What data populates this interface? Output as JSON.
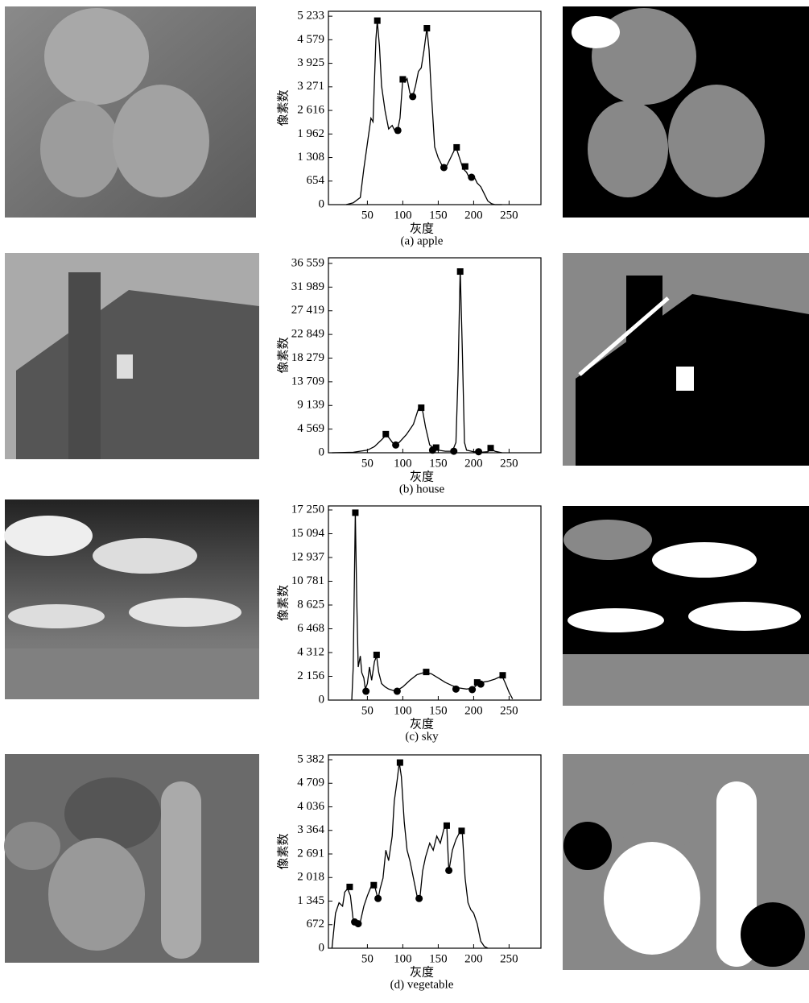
{
  "chart_data": [
    {
      "type": "line",
      "caption": "(a) apple",
      "xlabel": "灰度",
      "ylabel": "像素数",
      "xlim": [
        -5,
        295
      ],
      "xticks": [
        50,
        100,
        150,
        200,
        250
      ],
      "ylim": [
        0,
        5370
      ],
      "yticks": [
        0,
        654,
        {
          "value": 1308,
          "label": "1 308"
        },
        {
          "value": 1962,
          "label": "1 962"
        },
        {
          "value": 2616,
          "label": "2 616"
        },
        {
          "value": 3271,
          "label": "3 271"
        },
        {
          "value": 3925,
          "label": "3 925"
        },
        {
          "value": 4579,
          "label": "4 579"
        },
        {
          "value": 5233,
          "label": "5 233"
        }
      ],
      "series": [
        {
          "color": "#000000",
          "x": [
            20,
            30,
            40,
            45,
            50,
            55,
            58,
            62,
            64,
            67,
            70,
            75,
            80,
            85,
            90,
            93,
            96,
            100,
            103,
            106,
            110,
            114,
            118,
            122,
            126,
            130,
            134,
            137,
            140,
            145,
            150,
            155,
            160,
            165,
            170,
            175,
            180,
            185,
            190,
            195,
            200,
            205,
            210,
            215,
            220,
            225,
            230,
            240
          ],
          "values": [
            0,
            50,
            200,
            1000,
            1700,
            2400,
            2300,
            4600,
            5100,
            4400,
            3300,
            2600,
            2100,
            2200,
            2000,
            2100,
            2400,
            3500,
            3400,
            3500,
            3100,
            3000,
            3300,
            3700,
            3800,
            4300,
            4900,
            4300,
            3200,
            1600,
            1300,
            1100,
            1000,
            1200,
            1400,
            1600,
            1300,
            1000,
            900,
            700,
            800,
            600,
            500,
            300,
            100,
            30,
            0,
            0
          ]
        },
        {
          "color": "#000000",
          "marker": "square",
          "x": [
            64,
            100,
            134,
            176,
            188
          ],
          "values": [
            5110,
            3480,
            4900,
            1590,
            1060
          ]
        },
        {
          "color": "#000000",
          "marker": "circle",
          "x": [
            93,
            114,
            158,
            197
          ],
          "values": [
            2060,
            3000,
            1030,
            760
          ]
        }
      ]
    },
    {
      "type": "line",
      "caption": "(b) house",
      "xlabel": "灰度",
      "ylabel": "像素数",
      "xlim": [
        -5,
        295
      ],
      "xticks": [
        50,
        100,
        150,
        200,
        250
      ],
      "ylim": [
        0,
        37650
      ],
      "yticks": [
        0,
        {
          "value": 4569,
          "label": "4 569"
        },
        {
          "value": 9139,
          "label": "9 139"
        },
        {
          "value": 13709,
          "label": "13 709"
        },
        {
          "value": 18279,
          "label": "18 279"
        },
        {
          "value": 22849,
          "label": "22 849"
        },
        {
          "value": 27419,
          "label": "27 419"
        },
        {
          "value": 31989,
          "label": "31 989"
        },
        {
          "value": 36559,
          "label": "36 559"
        }
      ],
      "series": [
        {
          "color": "#000000",
          "x": [
            0,
            30,
            50,
            60,
            70,
            77,
            82,
            88,
            95,
            105,
            115,
            122,
            127,
            132,
            138,
            145,
            150,
            160,
            170,
            175,
            178,
            181,
            184,
            187,
            190,
            200,
            210,
            220,
            225,
            230,
            240
          ],
          "values": [
            0,
            100,
            500,
            1200,
            2500,
            3500,
            2600,
            1500,
            2000,
            3500,
            5500,
            8500,
            8800,
            5000,
            1500,
            800,
            500,
            300,
            300,
            2000,
            15000,
            35500,
            20000,
            2000,
            500,
            200,
            100,
            200,
            800,
            300,
            0
          ]
        },
        {
          "color": "#000000",
          "marker": "square",
          "x": [
            76,
            126,
            147,
            181,
            224
          ],
          "values": [
            3600,
            8700,
            1000,
            35000,
            900
          ]
        },
        {
          "color": "#000000",
          "marker": "circle",
          "x": [
            90,
            142,
            172,
            207
          ],
          "values": [
            1500,
            500,
            300,
            200
          ]
        }
      ]
    },
    {
      "type": "line",
      "caption": "(c) sky",
      "xlabel": "灰度",
      "ylabel": "像素数",
      "xlim": [
        -5,
        295
      ],
      "xticks": [
        50,
        100,
        150,
        200,
        250
      ],
      "ylim": [
        0,
        17615
      ],
      "yticks": [
        0,
        {
          "value": 2156,
          "label": "2 156"
        },
        {
          "value": 4312,
          "label": "4 312"
        },
        {
          "value": 6468,
          "label": "6 468"
        },
        {
          "value": 8625,
          "label": "8 625"
        },
        {
          "value": 10781,
          "label": "10 781"
        },
        {
          "value": 12937,
          "label": "12 937"
        },
        {
          "value": 15094,
          "label": "15 094"
        },
        {
          "value": 17250,
          "label": "17 250"
        }
      ],
      "series": [
        {
          "color": "#000000",
          "x": [
            28,
            30,
            33,
            35,
            37,
            40,
            42,
            45,
            47,
            50,
            53,
            56,
            60,
            63,
            66,
            70,
            75,
            80,
            90,
            100,
            110,
            120,
            130,
            140,
            150,
            160,
            170,
            180,
            190,
            200,
            205,
            210,
            220,
            230,
            240,
            245,
            250,
            255
          ],
          "values": [
            0,
            3000,
            17000,
            9000,
            3000,
            4000,
            2500,
            2000,
            1000,
            1500,
            3000,
            1800,
            3500,
            4000,
            2500,
            1500,
            1200,
            1000,
            800,
            1200,
            1800,
            2300,
            2500,
            2400,
            2000,
            1600,
            1300,
            1100,
            1000,
            1100,
            1400,
            1600,
            1700,
            1900,
            2200,
            1500,
            700,
            100
          ]
        },
        {
          "color": "#000000",
          "marker": "square",
          "x": [
            33,
            63,
            133,
            205,
            241
          ],
          "values": [
            17000,
            4100,
            2550,
            1600,
            2250
          ]
        },
        {
          "color": "#000000",
          "marker": "circle",
          "x": [
            48,
            92,
            175,
            198,
            210
          ],
          "values": [
            800,
            800,
            1000,
            950,
            1450
          ]
        }
      ]
    },
    {
      "type": "line",
      "caption": "(d) vegetable",
      "xlabel": "灰度",
      "ylabel": "像素数",
      "xlim": [
        -5,
        295
      ],
      "xticks": [
        50,
        100,
        150,
        200,
        250
      ],
      "ylim": [
        0,
        5520
      ],
      "yticks": [
        0,
        672,
        {
          "value": 1345,
          "label": "1 345"
        },
        {
          "value": 2018,
          "label": "2 018"
        },
        {
          "value": 2691,
          "label": "2 691"
        },
        {
          "value": 3364,
          "label": "3 364"
        },
        {
          "value": 4036,
          "label": "4 036"
        },
        {
          "value": 4709,
          "label": "4 709"
        },
        {
          "value": 5382,
          "label": "5 382"
        }
      ],
      "series": [
        {
          "color": "#000000",
          "x": [
            0,
            5,
            10,
            15,
            18,
            22,
            26,
            30,
            35,
            40,
            45,
            50,
            55,
            60,
            65,
            68,
            72,
            76,
            80,
            85,
            88,
            92,
            95,
            98,
            102,
            106,
            110,
            115,
            120,
            124,
            128,
            132,
            138,
            143,
            148,
            153,
            158,
            162,
            165,
            170,
            175,
            180,
            184,
            188,
            192,
            196,
            200,
            205,
            210,
            215,
            220
          ],
          "values": [
            0,
            1000,
            1300,
            1200,
            1600,
            1700,
            1500,
            800,
            700,
            750,
            1200,
            1500,
            1750,
            1800,
            1400,
            1700,
            2000,
            2800,
            2500,
            3200,
            4200,
            4800,
            5300,
            4900,
            3600,
            2800,
            2500,
            2000,
            1500,
            1400,
            2200,
            2600,
            3000,
            2800,
            3200,
            3000,
            3400,
            3500,
            2200,
            2800,
            3100,
            3300,
            3300,
            2000,
            1300,
            1100,
            1000,
            700,
            200,
            50,
            0
          ]
        },
        {
          "color": "#000000",
          "marker": "square",
          "x": [
            25,
            59,
            96,
            162,
            183
          ],
          "values": [
            1750,
            1800,
            5300,
            3500,
            3350
          ]
        },
        {
          "color": "#000000",
          "marker": "circle",
          "x": [
            32,
            37,
            65,
            123,
            165
          ],
          "values": [
            750,
            700,
            1420,
            1420,
            2220
          ]
        }
      ]
    }
  ]
}
